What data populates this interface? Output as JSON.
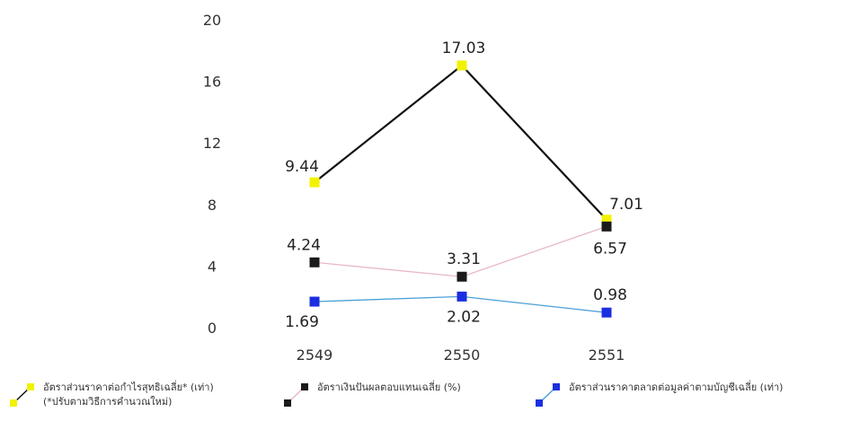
{
  "chart_data": {
    "type": "line",
    "categories": [
      "2549",
      "2550",
      "2551"
    ],
    "ylim": [
      0,
      20
    ],
    "yticks": [
      0,
      4,
      8,
      12,
      16,
      20
    ],
    "grid": false,
    "legend_position": "bottom",
    "series": [
      {
        "name": "อัตราส่วนราคาต่อกำไรสุทธิเฉลี่ย* (เท่า)",
        "name_note": "(*ปรับตามวิธีการคำนวณใหม่)",
        "values": [
          9.44,
          17.03,
          7.01
        ],
        "labels": [
          "9.44",
          "17.03",
          "7.01"
        ],
        "marker_color": "#f2f200",
        "line_color": "#111111"
      },
      {
        "name": "อัตราเงินปันผลตอบแทนเฉลี่ย (%)",
        "values": [
          4.24,
          3.31,
          6.57
        ],
        "labels": [
          "4.24",
          "3.31",
          "6.57"
        ],
        "marker_color": "#1a1a1a",
        "line_color": "#e8b7c8"
      },
      {
        "name": "อัตราส่วนราคาตลาดต่อมูลค่าตามบัญชีเฉลี่ย (เท่า)",
        "values": [
          1.69,
          2.02,
          0.98
        ],
        "labels": [
          "1.69",
          "2.02",
          "0.98"
        ],
        "marker_color": "#1a2fe0",
        "line_color": "#4aa0d8"
      }
    ]
  }
}
